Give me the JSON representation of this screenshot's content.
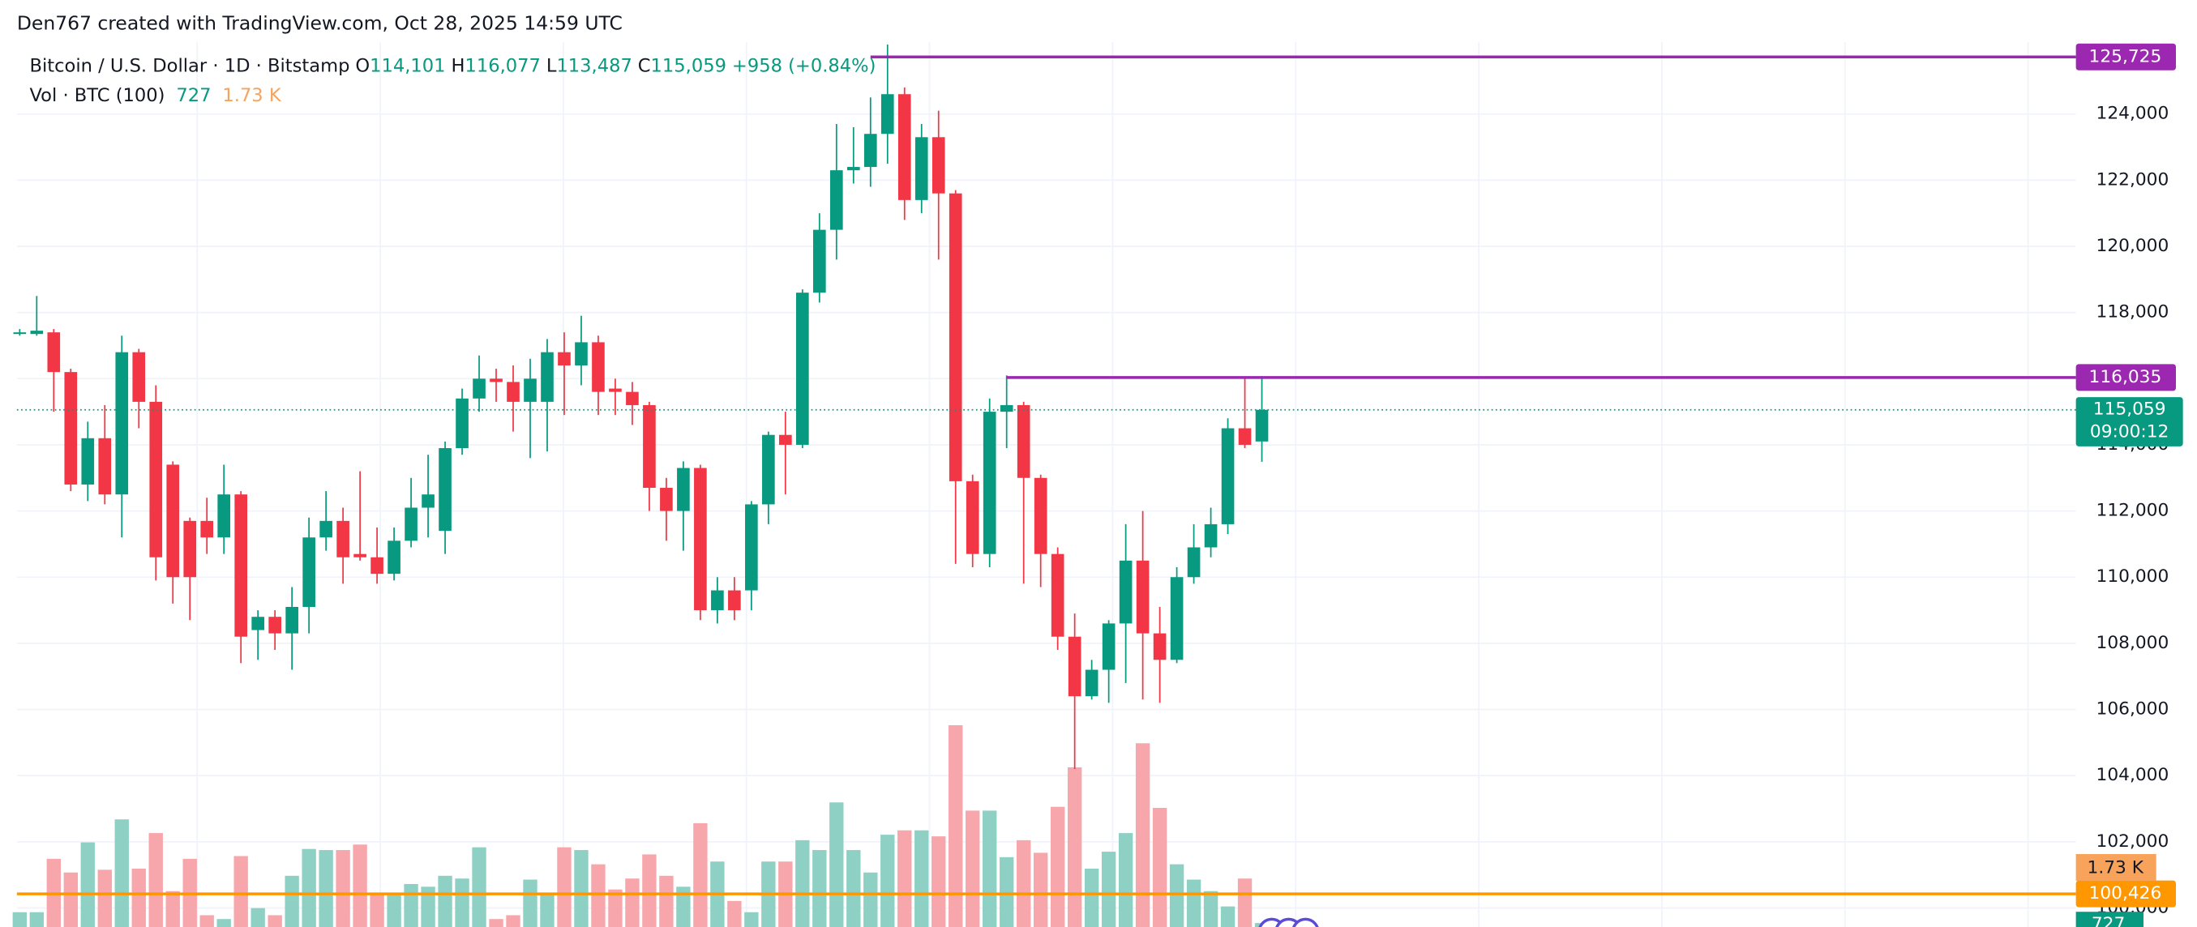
{
  "header": "Den767 created with TradingView.com, Oct 28, 2025 14:59 UTC",
  "chart_data": {
    "type": "candlestick",
    "title": "Bitcoin / U.S. Dollar · 1D · Bitstamp",
    "legend": {
      "open_label": "O",
      "open": {
        "value": 114101,
        "label": "114,101"
      },
      "high_label": "H",
      "high": {
        "value": 116077,
        "label": "116,077"
      },
      "low_label": "L",
      "low": {
        "value": 113487,
        "label": "113,487"
      },
      "close_label": "C",
      "close": {
        "value": 115059,
        "label": "115,059"
      },
      "change": "+958 (+0.84%)",
      "volume_title": "Vol · BTC (100)"
    },
    "categories": [
      null,
      null,
      null,
      null,
      null,
      null,
      null,
      null,
      null,
      null,
      null,
      null,
      null,
      null,
      null,
      null,
      null,
      null,
      null,
      null,
      null,
      null,
      null,
      null,
      null,
      null,
      null,
      null,
      null,
      null,
      null,
      null,
      null,
      null,
      null,
      null,
      null,
      null,
      null,
      null,
      null,
      null,
      null,
      null,
      null,
      null,
      null,
      null,
      null,
      null,
      null,
      null,
      null,
      null,
      null,
      null,
      null,
      null,
      null,
      null,
      null,
      null,
      null,
      null,
      null,
      null,
      null,
      null,
      null,
      null,
      null,
      null,
      null,
      null
    ],
    "open": [
      117350,
      117350,
      117400,
      116200,
      112800,
      114200,
      112500,
      116800,
      115300,
      113400,
      111700,
      111700,
      111200,
      112500,
      108400,
      108800,
      108300,
      109100,
      111200,
      111700,
      110700,
      110600,
      110100,
      111100,
      112100,
      111400,
      113900,
      115400,
      116000,
      115900,
      115300,
      115300,
      116800,
      116400,
      117100,
      115700,
      115600,
      115200,
      112700,
      112000,
      113300,
      109000,
      109600,
      109600,
      112200,
      114300,
      114000,
      118600,
      120500,
      122300,
      122400,
      123400,
      124600,
      121400,
      123300,
      121600,
      112900,
      110700,
      115000,
      115200,
      113000,
      110700,
      108200,
      106400,
      107200,
      108600,
      110500,
      108300,
      107500,
      110000,
      110900,
      111600,
      114500,
      114101
    ],
    "high": [
      117500,
      118500,
      117500,
      116300,
      114700,
      115200,
      117300,
      116900,
      115800,
      113500,
      111800,
      112400,
      113400,
      112600,
      109000,
      109000,
      109700,
      111800,
      112600,
      112100,
      113200,
      111500,
      111500,
      113000,
      113700,
      114100,
      115700,
      116700,
      116300,
      116400,
      116600,
      117200,
      117400,
      117900,
      117300,
      116000,
      115900,
      115300,
      113000,
      113500,
      113400,
      110000,
      110000,
      112300,
      114400,
      115000,
      118700,
      121000,
      123700,
      123600,
      124500,
      126100,
      124800,
      123700,
      124100,
      121700,
      113100,
      115400,
      116100,
      115300,
      113100,
      110900,
      108900,
      107500,
      108700,
      111600,
      112000,
      109100,
      110300,
      111600,
      112100,
      114800,
      116000,
      116077
    ],
    "low": [
      117300,
      117300,
      115000,
      112600,
      112300,
      112200,
      111200,
      114500,
      109900,
      109200,
      108700,
      110700,
      110700,
      107400,
      107500,
      107800,
      107200,
      108300,
      110800,
      109800,
      110500,
      109800,
      109900,
      110900,
      111200,
      110700,
      113700,
      115000,
      115300,
      114400,
      113600,
      113800,
      114900,
      115800,
      114900,
      114900,
      114600,
      112000,
      111100,
      110800,
      108700,
      108600,
      108700,
      109000,
      111600,
      112500,
      113900,
      118300,
      119600,
      121900,
      121800,
      122500,
      120800,
      121000,
      119600,
      110400,
      110300,
      110300,
      113900,
      109800,
      109700,
      107800,
      104200,
      106300,
      106200,
      106800,
      106300,
      106200,
      107400,
      109800,
      110600,
      111300,
      113900,
      113487
    ],
    "close": [
      117400,
      117450,
      116200,
      112800,
      114200,
      112500,
      116800,
      115300,
      110600,
      110000,
      110000,
      111200,
      112500,
      108200,
      108800,
      108300,
      109100,
      111200,
      111700,
      110600,
      110600,
      110100,
      111100,
      112100,
      112500,
      113900,
      115400,
      116000,
      115900,
      115300,
      116000,
      116800,
      116400,
      117100,
      115600,
      115600,
      115200,
      112700,
      112000,
      113300,
      109000,
      109600,
      109000,
      112200,
      114300,
      114000,
      118600,
      120500,
      122300,
      122400,
      123400,
      124600,
      121400,
      123300,
      121600,
      112900,
      110700,
      115000,
      115200,
      113000,
      110700,
      108200,
      106400,
      107200,
      108600,
      110500,
      108300,
      107500,
      110000,
      110900,
      111600,
      114500,
      114000,
      115059
    ],
    "volume": [
      925,
      925,
      1900,
      1650,
      2200,
      1700,
      2620,
      1720,
      2370,
      1310,
      1900,
      870,
      800,
      1950,
      1000,
      870,
      1590,
      2080,
      2060,
      2060,
      2160,
      1260,
      1260,
      1440,
      1390,
      1590,
      1540,
      2110,
      800,
      870,
      1520,
      1260,
      2110,
      2060,
      1800,
      1340,
      1540,
      1980,
      1590,
      1390,
      2550,
      1850,
      1130,
      925,
      1850,
      1850,
      2240,
      2060,
      2930,
      2060,
      1650,
      2340,
      2420,
      2420,
      2310,
      4340,
      2780,
      2780,
      1930,
      2240,
      2010,
      2850,
      3570,
      1720,
      2030,
      2370,
      4010,
      2830,
      1800,
      1520,
      1310,
      1030,
      1540,
      727
    ],
    "volume_ma": {
      "value": 1730,
      "label": "1.73 K"
    },
    "up_color": "#089981",
    "down_color": "#f23645",
    "volume_up_color": "#8fd0c5",
    "volume_down_color": "#f7a6ab",
    "volume_ma_color": "#f7a35c",
    "ylim": [
      99425,
      127447
    ],
    "yticks": [
      {
        "value": 100000,
        "label": "100,000"
      },
      {
        "value": 102000,
        "label": "102,000"
      },
      {
        "value": 104000,
        "label": "104,000"
      },
      {
        "value": 106000,
        "label": "106,000"
      },
      {
        "value": 108000,
        "label": "108,000"
      },
      {
        "value": 110000,
        "label": "110,000"
      },
      {
        "value": 112000,
        "label": "112,000"
      },
      {
        "value": 114000,
        "label": "114,000"
      },
      {
        "value": 116000,
        "label": "116,000"
      },
      {
        "value": 118000,
        "label": "118,000"
      },
      {
        "value": 120000,
        "label": "120,000"
      },
      {
        "value": 122000,
        "label": "122,000"
      },
      {
        "value": 124000,
        "label": "124,000"
      }
    ],
    "grid": true,
    "levels": [
      {
        "value": 125725,
        "label": "125,725",
        "color": "#9c27b0",
        "from": 50
      },
      {
        "value": 116035,
        "label": "116,035",
        "color": "#9c27b0",
        "from": 58
      },
      {
        "value": 100426,
        "label": "100,426",
        "color": "#ff9800",
        "from": null
      }
    ],
    "last_price": {
      "value": 115059,
      "label": "115,059"
    },
    "countdown": "09:00:12"
  }
}
